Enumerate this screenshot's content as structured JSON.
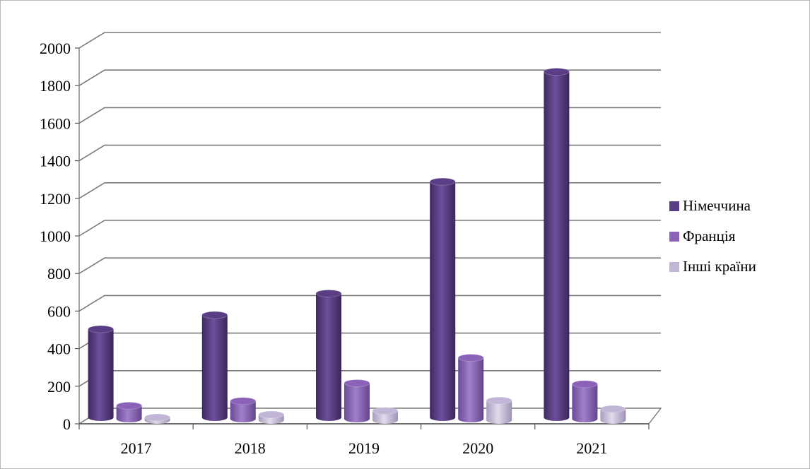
{
  "chart_data": {
    "type": "bar",
    "categories": [
      "2017",
      "2018",
      "2019",
      "2020",
      "2021"
    ],
    "series": [
      {
        "name": "Німеччина",
        "values": [
          470,
          545,
          660,
          1255,
          1840
        ],
        "color": "#5b3d86"
      },
      {
        "name": "Франція",
        "values": [
          70,
          95,
          190,
          325,
          185
        ],
        "color": "#8a63b8"
      },
      {
        "name": "Інші країни",
        "values": [
          15,
          30,
          50,
          105,
          60
        ],
        "color": "#c2b6d6"
      }
    ],
    "y_ticks": [
      "0",
      "200",
      "400",
      "600",
      "800",
      "1000",
      "1200",
      "1400",
      "1600",
      "1800",
      "2000"
    ],
    "ylim": [
      0,
      2000
    ],
    "grid": true,
    "legend_position": "right",
    "title": "",
    "xlabel": "",
    "ylabel": ""
  }
}
